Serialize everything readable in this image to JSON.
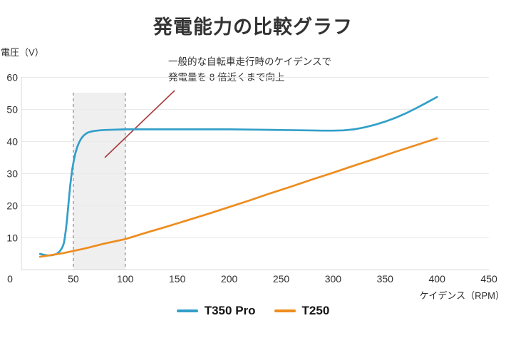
{
  "title": "発電能力の比較グラフ",
  "y_axis": {
    "label": "電圧（V）"
  },
  "x_axis": {
    "label": "ケイデンス（RPM）"
  },
  "annotation": {
    "line1": "一般的な自転車走行時のケイデンスで",
    "line2": "発電量を 8 倍近くまで向上",
    "pointer_line": {
      "x1": 245,
      "y1": 127,
      "x2": 147,
      "y2": 221
    },
    "pointer_color": "#a93a3a"
  },
  "legend": {
    "items": [
      {
        "label": "T350 Pro",
        "color": "#339fc9"
      },
      {
        "label": "T250",
        "color": "#ee8c1e"
      }
    ]
  },
  "colors": {
    "grid": "#eaeaea",
    "axis": "#d8d8d8",
    "band_fill": "#efeff0",
    "dashed_line": "#6f6f6f",
    "tick_text": "#2e2e2e"
  },
  "chart_data": {
    "type": "line",
    "title": "発電能力の比較グラフ",
    "xlabel": "ケイデンス（RPM）",
    "ylabel": "電圧（V）",
    "xlim": [
      0,
      450
    ],
    "ylim": [
      0,
      60
    ],
    "x_ticks": [
      50,
      100,
      150,
      200,
      250,
      300,
      350,
      400,
      450
    ],
    "y_ticks": [
      10,
      20,
      30,
      40,
      50,
      60
    ],
    "origin_tick": 0,
    "grid": "horizontal",
    "legend_position": "bottom",
    "highlight_band_rpm": [
      50,
      100
    ],
    "series": [
      {
        "name": "T350 Pro",
        "color": "#339fc9",
        "points": [
          [
            18,
            5.0
          ],
          [
            22,
            4.7
          ],
          [
            26,
            4.5
          ],
          [
            30,
            4.6
          ],
          [
            34,
            5.0
          ],
          [
            37,
            5.8
          ],
          [
            39,
            6.8
          ],
          [
            40,
            7.5
          ],
          [
            41,
            8.5
          ],
          [
            42,
            10.5
          ],
          [
            43,
            13
          ],
          [
            44,
            16
          ],
          [
            45,
            19.5
          ],
          [
            46,
            23
          ],
          [
            47,
            26.2
          ],
          [
            48,
            29
          ],
          [
            49,
            31.4
          ],
          [
            50,
            33.3
          ],
          [
            51,
            35
          ],
          [
            52,
            36.4
          ],
          [
            53,
            37.5
          ],
          [
            54,
            38.5
          ],
          [
            55,
            39.3
          ],
          [
            56,
            40
          ],
          [
            57,
            40.6
          ],
          [
            58,
            41.1
          ],
          [
            60,
            41.9
          ],
          [
            62,
            42.4
          ],
          [
            64,
            42.8
          ],
          [
            67,
            43.1
          ],
          [
            70,
            43.3
          ],
          [
            75,
            43.5
          ],
          [
            80,
            43.6
          ],
          [
            90,
            43.7
          ],
          [
            100,
            43.8
          ],
          [
            125,
            43.8
          ],
          [
            150,
            43.8
          ],
          [
            175,
            43.8
          ],
          [
            200,
            43.8
          ],
          [
            225,
            43.7
          ],
          [
            250,
            43.6
          ],
          [
            275,
            43.5
          ],
          [
            290,
            43.4
          ],
          [
            300,
            43.4
          ],
          [
            310,
            43.5
          ],
          [
            320,
            43.8
          ],
          [
            330,
            44.4
          ],
          [
            340,
            45.2
          ],
          [
            350,
            46.2
          ],
          [
            360,
            47.4
          ],
          [
            370,
            48.8
          ],
          [
            380,
            50.4
          ],
          [
            390,
            52.1
          ],
          [
            400,
            53.9
          ]
        ]
      },
      {
        "name": "T250",
        "color": "#ee8c1e",
        "points": [
          [
            18,
            4.1
          ],
          [
            30,
            4.7
          ],
          [
            40,
            5.2
          ],
          [
            50,
            5.9
          ],
          [
            60,
            6.6
          ],
          [
            70,
            7.4
          ],
          [
            80,
            8.2
          ],
          [
            90,
            8.9
          ],
          [
            100,
            9.6
          ],
          [
            120,
            11.6
          ],
          [
            140,
            13.5
          ],
          [
            160,
            15.5
          ],
          [
            180,
            17.5
          ],
          [
            200,
            19.6
          ],
          [
            220,
            21.7
          ],
          [
            240,
            23.9
          ],
          [
            260,
            26.0
          ],
          [
            280,
            28.2
          ],
          [
            300,
            30.3
          ],
          [
            320,
            32.5
          ],
          [
            340,
            34.6
          ],
          [
            360,
            36.8
          ],
          [
            380,
            38.9
          ],
          [
            400,
            41.0
          ]
        ]
      }
    ]
  }
}
